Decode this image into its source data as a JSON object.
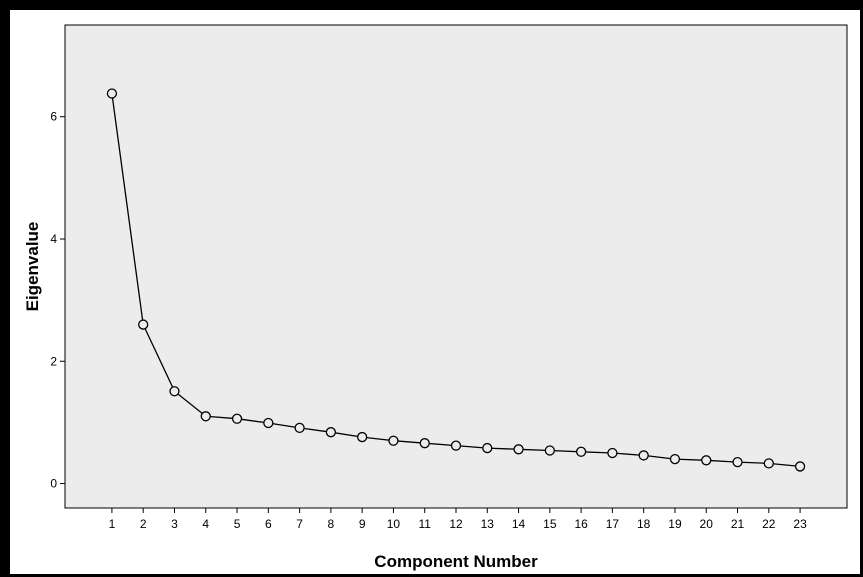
{
  "chart_data": {
    "type": "line",
    "title": "",
    "xlabel": "Component Number",
    "ylabel": "Eigenvalue",
    "x": [
      1,
      2,
      3,
      4,
      5,
      6,
      7,
      8,
      9,
      10,
      11,
      12,
      13,
      14,
      15,
      16,
      17,
      18,
      19,
      20,
      21,
      22,
      23
    ],
    "series": [
      {
        "values": [
          6.38,
          2.6,
          1.51,
          1.1,
          1.06,
          0.99,
          0.91,
          0.84,
          0.76,
          0.7,
          0.66,
          0.62,
          0.58,
          0.56,
          0.54,
          0.52,
          0.5,
          0.46,
          0.4,
          0.38,
          0.35,
          0.33,
          0.28
        ]
      }
    ],
    "xlim": [
      -0.5,
      24.5
    ],
    "ylim": [
      -0.4,
      7.5
    ],
    "yticks": [
      0,
      2,
      4,
      6
    ],
    "marker": "open-circle",
    "grid": false,
    "legend": "none",
    "colors": {
      "plot_background": "#ececec",
      "line": "#000000",
      "frame": "#000000"
    }
  }
}
